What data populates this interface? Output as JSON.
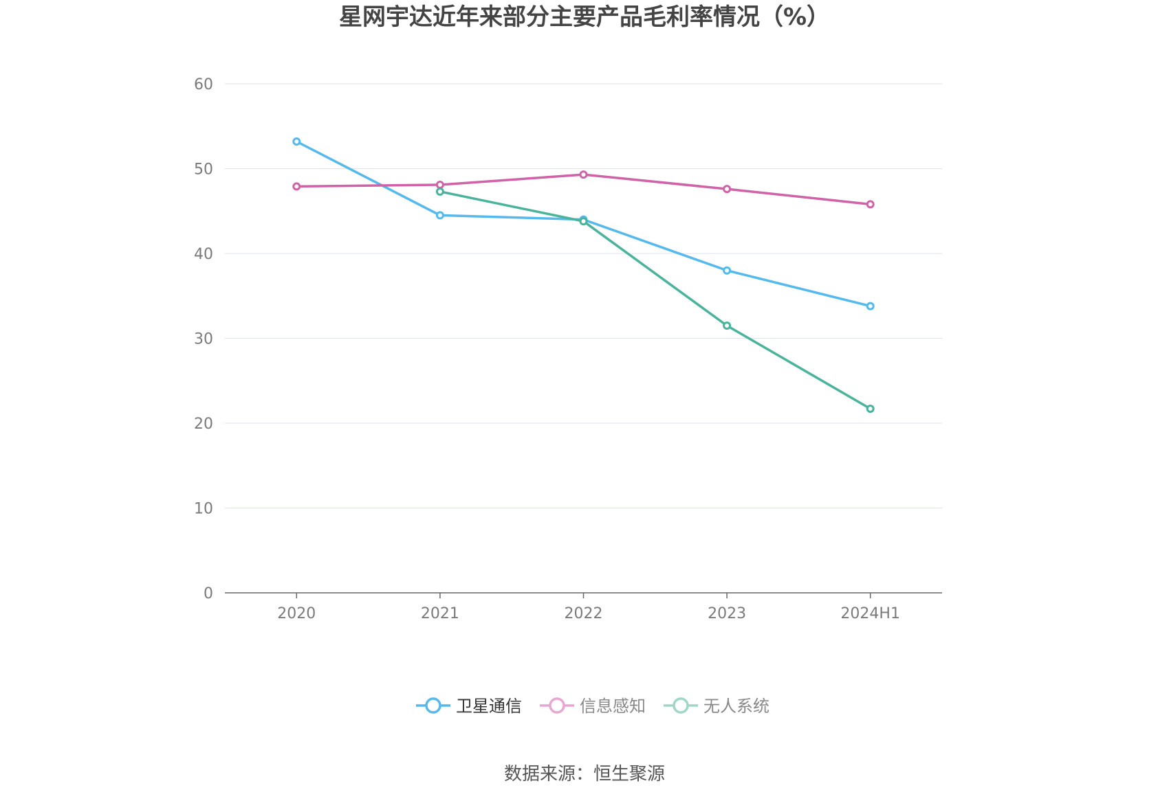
{
  "chart_data": {
    "type": "line",
    "title": "星网宇达近年来部分主要产品毛利率情况（%）",
    "categories": [
      "2020",
      "2021",
      "2022",
      "2023",
      "2024H1"
    ],
    "ylim": [
      0,
      60
    ],
    "yticks": [
      0,
      10,
      20,
      30,
      40,
      50,
      60
    ],
    "ytick_labels": [
      "0",
      "10",
      "20",
      "30",
      "40",
      "50",
      "60"
    ],
    "grid": true,
    "legend_position": "bottom",
    "series": [
      {
        "name": "卫星通信",
        "color": "#55b9ee",
        "legend_color": "#333333",
        "values": [
          53.2,
          44.5,
          44.0,
          38.0,
          33.8
        ]
      },
      {
        "name": "信息感知",
        "color": "#d062a8",
        "legend_color": "#888888",
        "values": [
          47.9,
          48.1,
          49.3,
          47.6,
          45.8
        ]
      },
      {
        "name": "无人系统",
        "color": "#4ab39b",
        "legend_color": "#888888",
        "values": [
          null,
          47.3,
          43.8,
          31.5,
          21.7
        ]
      }
    ],
    "legend_symbol_colors": [
      "#55b9ee",
      "#e8a6d1",
      "#9fd6c8"
    ],
    "source": "数据来源：恒生聚源"
  }
}
